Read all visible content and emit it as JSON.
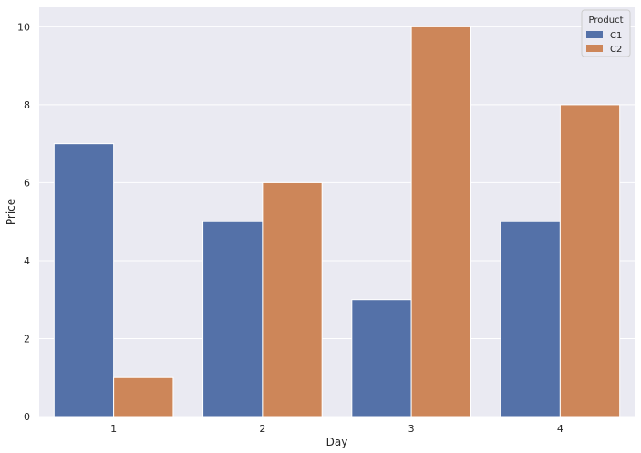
{
  "chart_data": {
    "type": "bar",
    "categories": [
      "1",
      "2",
      "3",
      "4"
    ],
    "series": [
      {
        "name": "C1",
        "values": [
          7,
          5,
          3,
          5
        ]
      },
      {
        "name": "C2",
        "values": [
          1,
          6,
          10,
          8
        ]
      }
    ],
    "xlabel": "Day",
    "ylabel": "Price",
    "ylim": [
      0,
      10.5
    ],
    "yticks": [
      0,
      2,
      4,
      6,
      8,
      10
    ],
    "legend_title": "Product",
    "legend_position": "top-right",
    "grid": true
  },
  "colors": {
    "series": [
      "#5471a8",
      "#cd8659"
    ],
    "background": "#eaeaf2",
    "grid": "#ffffff",
    "text": "#262626"
  }
}
